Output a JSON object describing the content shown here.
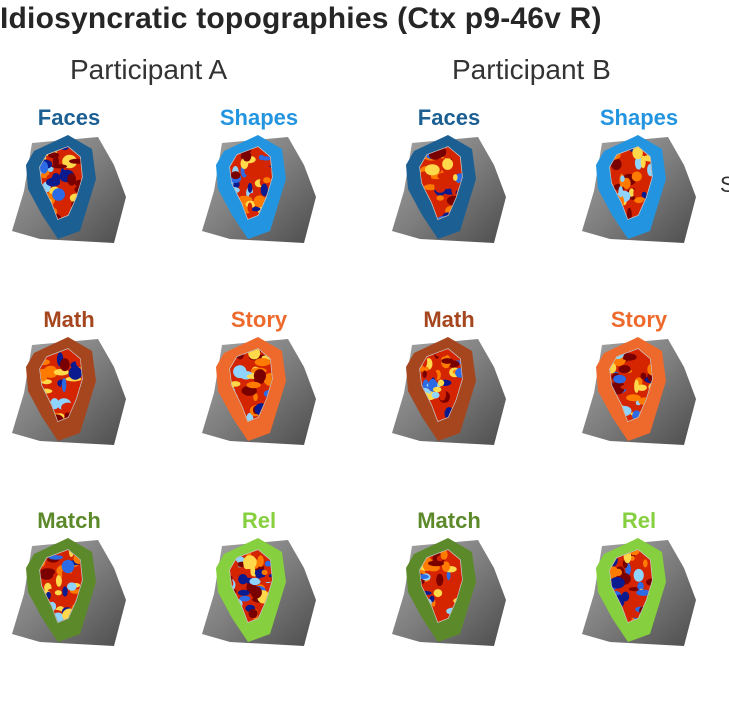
{
  "title": "Idiosyncratic topographies (Ctx p9-46v R)",
  "participants": [
    "Participant A",
    "Participant B"
  ],
  "side_text": "S",
  "tasks": [
    {
      "label": "Faces",
      "color": "#1c5f93"
    },
    {
      "label": "Shapes",
      "color": "#2395e0"
    },
    {
      "label": "Math",
      "color": "#a5461f"
    },
    {
      "label": "Story",
      "color": "#ee6a2c"
    },
    {
      "label": "Match",
      "color": "#5c8a2a"
    },
    {
      "label": "Rel",
      "color": "#86cf3e"
    }
  ],
  "map_colors": {
    "cortex_dark": "#4d4d4d",
    "cortex_light": "#a6a6a6",
    "hot": [
      "#7a0000",
      "#d42400",
      "#ff7b00",
      "#ffd94a"
    ],
    "cold": [
      "#0a1a8f",
      "#2c6ae6",
      "#8fd3ff"
    ]
  }
}
